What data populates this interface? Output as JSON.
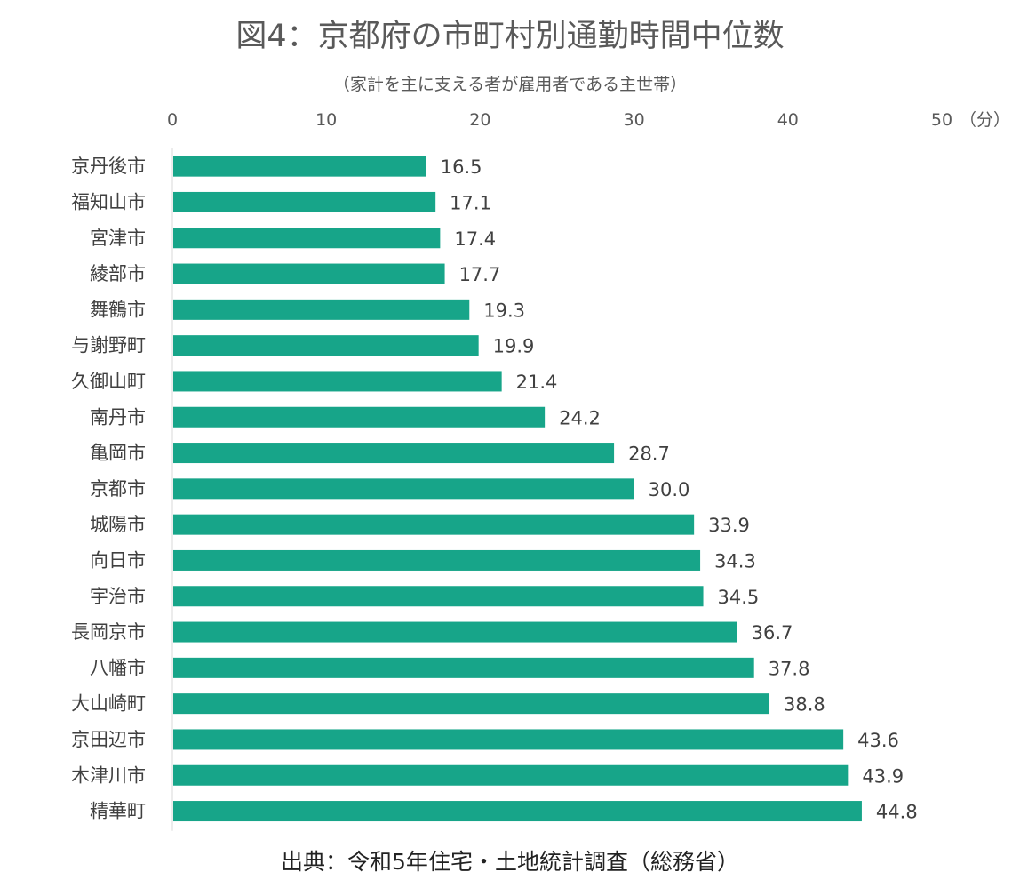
{
  "chart_data": {
    "type": "bar",
    "orientation": "horizontal",
    "title": "図4：京都府の市町村別通勤時間中位数",
    "subtitle": "（家計を主に支える者が雇用者である主世帯）",
    "unit_label": "（分）",
    "source": "出典：令和5年住宅・土地統計調査（総務省）",
    "xlim": [
      0,
      50
    ],
    "ticks": [
      0,
      10,
      20,
      30,
      40,
      50
    ],
    "tick_labels": [
      "0",
      "10",
      "20",
      "30",
      "40",
      "50"
    ],
    "categories": [
      "京丹後市",
      "福知山市",
      "宮津市",
      "綾部市",
      "舞鶴市",
      "与謝野町",
      "久御山町",
      "南丹市",
      "亀岡市",
      "京都市",
      "城陽市",
      "向日市",
      "宇治市",
      "長岡京市",
      "八幡市",
      "大山崎町",
      "京田辺市",
      "木津川市",
      "精華町"
    ],
    "values": [
      16.5,
      17.1,
      17.4,
      17.7,
      19.3,
      19.9,
      21.4,
      24.2,
      28.7,
      30.0,
      33.9,
      34.3,
      34.5,
      36.7,
      37.8,
      38.8,
      43.6,
      43.9,
      44.8
    ],
    "value_labels": [
      "16.5",
      "17.1",
      "17.4",
      "17.7",
      "19.3",
      "19.9",
      "21.4",
      "24.2",
      "28.7",
      "30.0",
      "33.9",
      "34.3",
      "34.5",
      "36.7",
      "37.8",
      "38.8",
      "43.6",
      "43.9",
      "44.8"
    ],
    "bar_color": "#17A589",
    "grid": false,
    "legend": "none"
  }
}
